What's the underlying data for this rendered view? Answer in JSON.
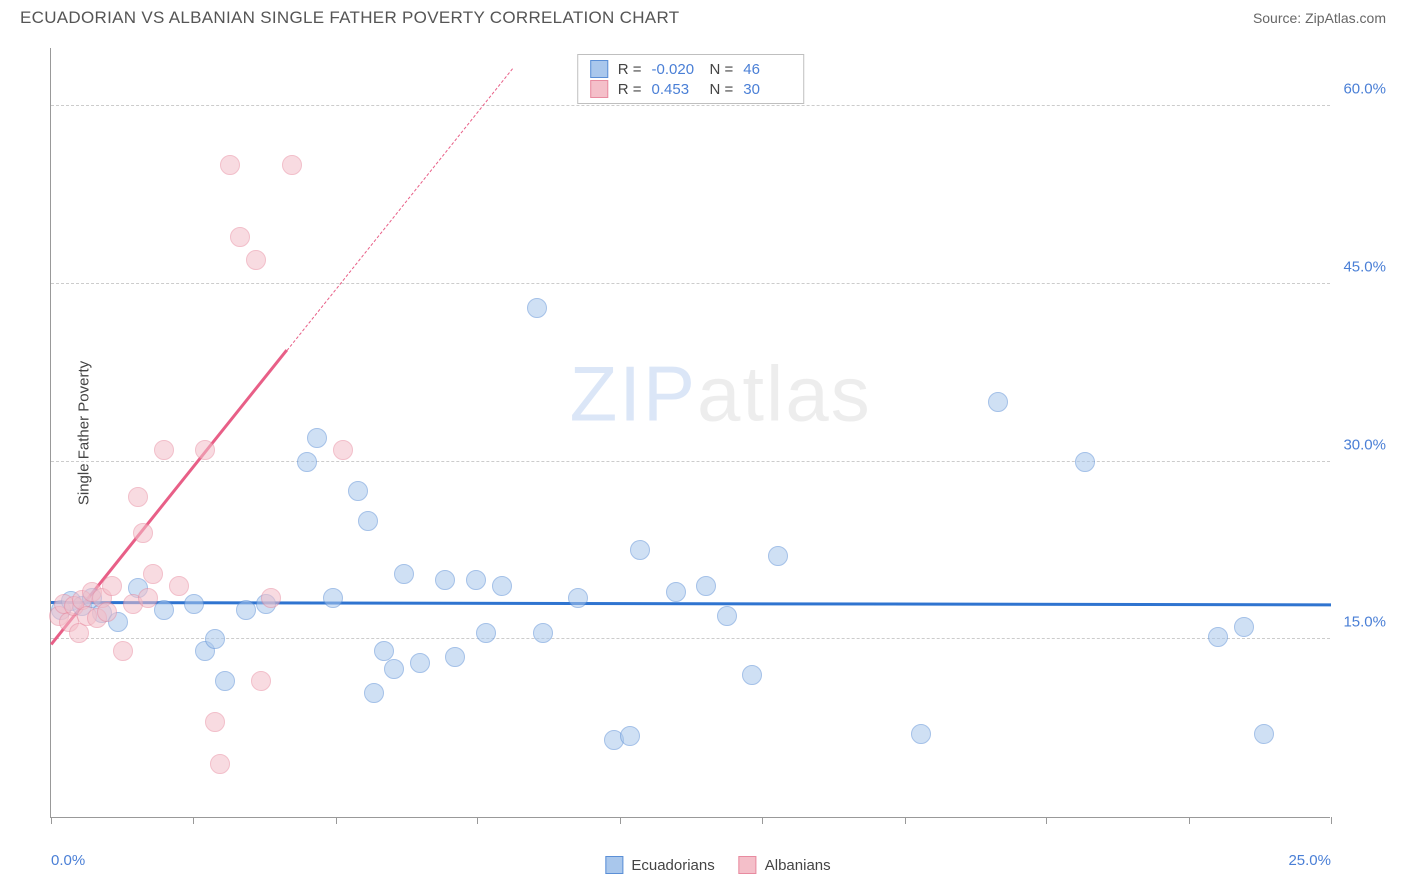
{
  "header": {
    "title": "ECUADORIAN VS ALBANIAN SINGLE FATHER POVERTY CORRELATION CHART",
    "source": "Source: ZipAtlas.com"
  },
  "chart": {
    "type": "scatter",
    "y_label": "Single Father Poverty",
    "xlim": [
      0,
      25
    ],
    "ylim": [
      0,
      65
    ],
    "x_ticks": [
      0,
      2.78,
      5.56,
      8.33,
      11.11,
      13.89,
      16.67,
      19.44,
      22.22,
      25
    ],
    "x_tick_labels": {
      "0": "0.0%",
      "25": "25.0%"
    },
    "y_gridlines": [
      15,
      30,
      45,
      60
    ],
    "y_tick_labels": {
      "15": "15.0%",
      "30": "30.0%",
      "45": "45.0%",
      "60": "60.0%"
    },
    "background_color": "#ffffff",
    "grid_color": "#cccccc",
    "axis_color": "#999999",
    "tick_label_color": "#4a7fd6",
    "label_color": "#444444",
    "marker_radius": 10,
    "series": {
      "ecuadorians": {
        "label": "Ecuadorians",
        "fill_color": "#a9c7ec",
        "stroke_color": "#5b8fd6",
        "fill_opacity": 0.55,
        "trend": {
          "slope": -0.008,
          "intercept": 18.0,
          "color": "#2f74d0",
          "width": 2.5,
          "solid_x_end": 25
        },
        "points": [
          [
            0.2,
            17.5
          ],
          [
            0.4,
            18.2
          ],
          [
            0.6,
            17.8
          ],
          [
            0.8,
            18.5
          ],
          [
            1.0,
            17.2
          ],
          [
            1.3,
            16.5
          ],
          [
            1.7,
            19.3
          ],
          [
            2.2,
            17.5
          ],
          [
            2.8,
            18.0
          ],
          [
            3.0,
            14.0
          ],
          [
            3.2,
            15.0
          ],
          [
            3.4,
            11.5
          ],
          [
            3.8,
            17.5
          ],
          [
            4.2,
            18.0
          ],
          [
            5.0,
            30.0
          ],
          [
            5.2,
            32.0
          ],
          [
            5.5,
            18.5
          ],
          [
            6.0,
            27.5
          ],
          [
            6.2,
            25.0
          ],
          [
            6.3,
            10.5
          ],
          [
            6.5,
            14.0
          ],
          [
            6.7,
            12.5
          ],
          [
            6.9,
            20.5
          ],
          [
            7.2,
            13.0
          ],
          [
            7.7,
            20.0
          ],
          [
            7.9,
            13.5
          ],
          [
            8.3,
            20.0
          ],
          [
            8.5,
            15.5
          ],
          [
            8.8,
            19.5
          ],
          [
            9.5,
            43.0
          ],
          [
            9.6,
            15.5
          ],
          [
            10.3,
            18.5
          ],
          [
            11.0,
            6.5
          ],
          [
            11.3,
            6.8
          ],
          [
            11.5,
            22.5
          ],
          [
            12.2,
            19.0
          ],
          [
            12.8,
            19.5
          ],
          [
            13.2,
            17.0
          ],
          [
            13.7,
            12.0
          ],
          [
            14.2,
            22.0
          ],
          [
            17.0,
            7.0
          ],
          [
            18.5,
            35.0
          ],
          [
            20.2,
            30.0
          ],
          [
            22.8,
            15.2
          ],
          [
            23.3,
            16.0
          ],
          [
            23.7,
            7.0
          ]
        ]
      },
      "albanians": {
        "label": "Albanians",
        "fill_color": "#f4bfc9",
        "stroke_color": "#e88ba0",
        "fill_opacity": 0.55,
        "trend": {
          "slope": 5.4,
          "intercept": 14.5,
          "color": "#e85f87",
          "width": 2.5,
          "solid_x_end": 4.6,
          "dash_x_end": 9.0
        },
        "points": [
          [
            0.15,
            17.0
          ],
          [
            0.25,
            18.0
          ],
          [
            0.35,
            16.5
          ],
          [
            0.45,
            17.8
          ],
          [
            0.55,
            15.5
          ],
          [
            0.6,
            18.3
          ],
          [
            0.7,
            17.0
          ],
          [
            0.8,
            19.0
          ],
          [
            0.9,
            16.8
          ],
          [
            1.0,
            18.5
          ],
          [
            1.1,
            17.3
          ],
          [
            1.2,
            19.5
          ],
          [
            1.4,
            14.0
          ],
          [
            1.6,
            18.0
          ],
          [
            1.7,
            27.0
          ],
          [
            1.8,
            24.0
          ],
          [
            1.9,
            18.5
          ],
          [
            2.0,
            20.5
          ],
          [
            2.2,
            31.0
          ],
          [
            2.5,
            19.5
          ],
          [
            3.0,
            31.0
          ],
          [
            3.2,
            8.0
          ],
          [
            3.3,
            4.5
          ],
          [
            3.5,
            55.0
          ],
          [
            3.7,
            49.0
          ],
          [
            4.0,
            47.0
          ],
          [
            4.1,
            11.5
          ],
          [
            4.3,
            18.5
          ],
          [
            4.7,
            55.0
          ],
          [
            5.7,
            31.0
          ]
        ]
      }
    },
    "stats_box": {
      "rows": [
        {
          "swatch_fill": "#a9c7ec",
          "swatch_stroke": "#5b8fd6",
          "r": "-0.020",
          "n": "46"
        },
        {
          "swatch_fill": "#f4bfc9",
          "swatch_stroke": "#e88ba0",
          "r": "0.453",
          "n": "30"
        }
      ],
      "label_r": "R =",
      "label_n": "N ="
    },
    "watermark": {
      "zip": "ZIP",
      "atlas": "atlas"
    }
  },
  "bottom_legend": [
    {
      "label": "Ecuadorians",
      "fill": "#a9c7ec",
      "stroke": "#5b8fd6"
    },
    {
      "label": "Albanians",
      "fill": "#f4bfc9",
      "stroke": "#e88ba0"
    }
  ]
}
